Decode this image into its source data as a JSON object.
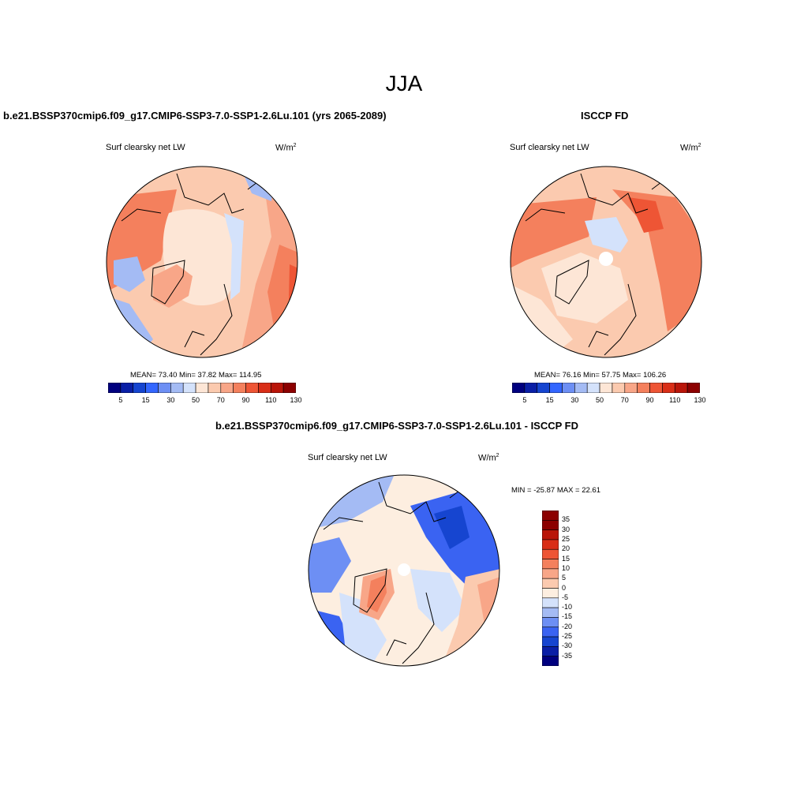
{
  "figure": {
    "title": "JJA"
  },
  "colors": {
    "seq": [
      "#00007f",
      "#0a1fa6",
      "#1645d0",
      "#3366ff",
      "#6d8ff4",
      "#a4bbf4",
      "#d4e2fb",
      "#fde6d6",
      "#fbcaaf",
      "#f8a688",
      "#f4805d",
      "#ee5535",
      "#d92e17",
      "#b91509",
      "#8c0000"
    ],
    "diff": [
      "#00007f",
      "#0a1fa6",
      "#1645d0",
      "#3a63f2",
      "#6d8ff4",
      "#a4bbf4",
      "#d4e2fb",
      "#fdeee0",
      "#fbcaaf",
      "#f8a688",
      "#f4805d",
      "#ee5535",
      "#d92e17",
      "#b91509",
      "#8c0000"
    ]
  },
  "panels": {
    "model": {
      "title": "b.e21.BSSP370cmip6.f09_g17.CMIP6-SSP3-7.0-SSP1-2.6Lu.101 (yrs 2065-2089)",
      "variable": "Surf clearsky net LW",
      "units_base": "W/m",
      "units_exp": "2",
      "stats": "MEAN=  73.40  Min=  37.82  Max= 114.95",
      "colorbar_ticks": [
        "5",
        "15",
        "30",
        "50",
        "70",
        "90",
        "110",
        "130"
      ]
    },
    "obs": {
      "title": "ISCCP FD",
      "variable": "Surf clearsky net LW",
      "units_base": "W/m",
      "units_exp": "2",
      "stats": "MEAN=  76.16  Min=  57.75  Max= 106.26",
      "colorbar_ticks": [
        "5",
        "15",
        "30",
        "50",
        "70",
        "90",
        "110",
        "130"
      ]
    },
    "diff": {
      "title": "b.e21.BSSP370cmip6.f09_g17.CMIP6-SSP3-7.0-SSP1-2.6Lu.101 - ISCCP FD",
      "variable": "Surf clearsky net LW",
      "units_base": "W/m",
      "units_exp": "2",
      "stats": "MIN = -25.87 MAX =  22.61",
      "colorbar_ticks": [
        "35",
        "30",
        "25",
        "20",
        "15",
        "10",
        "5",
        "0",
        "-5",
        "-10",
        "-15",
        "-20",
        "-25",
        "-30",
        "-35"
      ]
    }
  }
}
